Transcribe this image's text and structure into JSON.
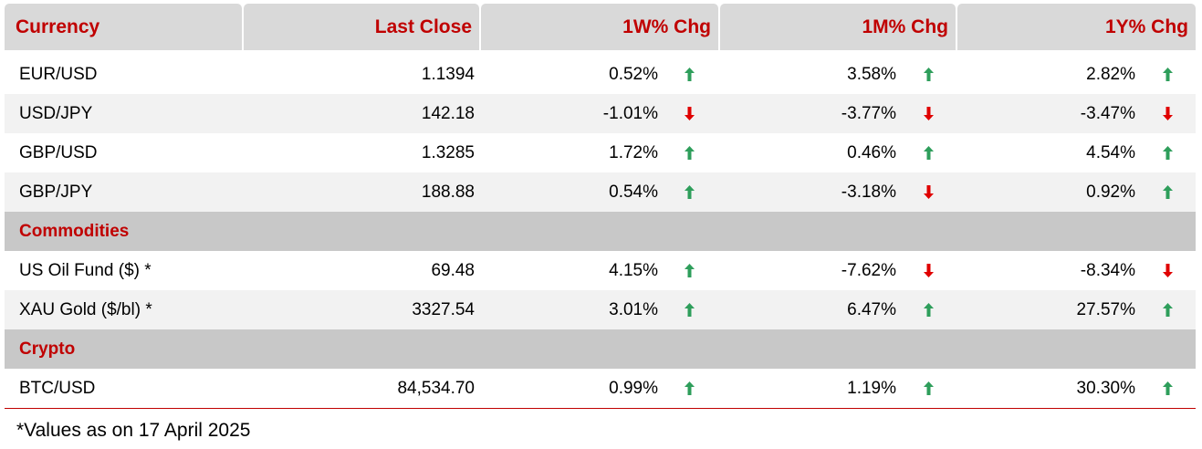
{
  "header": {
    "currency": "Currency",
    "last_close": "Last Close",
    "w1": "1W% Chg",
    "m1": "1M% Chg",
    "y1": "1Y% Chg"
  },
  "colors": {
    "accent": "#c00000",
    "up": "#2e9e5b",
    "down": "#e00000"
  },
  "icons": {
    "up": "arrow-up-icon",
    "down": "arrow-down-icon"
  },
  "rows": [
    {
      "name": "EUR/USD",
      "close": "1.1394",
      "w1": "0.52%",
      "w1_dir": "up",
      "m1": "3.58%",
      "m1_dir": "up",
      "y1": "2.82%",
      "y1_dir": "up"
    },
    {
      "name": "USD/JPY",
      "close": "142.18",
      "w1": "-1.01%",
      "w1_dir": "down",
      "m1": "-3.77%",
      "m1_dir": "down",
      "y1": "-3.47%",
      "y1_dir": "down"
    },
    {
      "name": "GBP/USD",
      "close": "1.3285",
      "w1": "1.72%",
      "w1_dir": "up",
      "m1": "0.46%",
      "m1_dir": "up",
      "y1": "4.54%",
      "y1_dir": "up"
    },
    {
      "name": "GBP/JPY",
      "close": "188.88",
      "w1": "0.54%",
      "w1_dir": "up",
      "m1": "-3.18%",
      "m1_dir": "down",
      "y1": "0.92%",
      "y1_dir": "up"
    },
    {
      "section": "Commodities"
    },
    {
      "name": "US Oil Fund ($) *",
      "close": "69.48",
      "w1": "4.15%",
      "w1_dir": "up",
      "m1": "-7.62%",
      "m1_dir": "down",
      "y1": "-8.34%",
      "y1_dir": "down"
    },
    {
      "name": "XAU Gold ($/bl) *",
      "close": "3327.54",
      "w1": "3.01%",
      "w1_dir": "up",
      "m1": "6.47%",
      "m1_dir": "up",
      "y1": "27.57%",
      "y1_dir": "up"
    },
    {
      "section": "Crypto"
    },
    {
      "name": "BTC/USD",
      "close": "84,534.70",
      "w1": "0.99%",
      "w1_dir": "up",
      "m1": "1.19%",
      "m1_dir": "up",
      "y1": "30.30%",
      "y1_dir": "up"
    }
  ],
  "footnote": "*Values as on 17 April 2025"
}
